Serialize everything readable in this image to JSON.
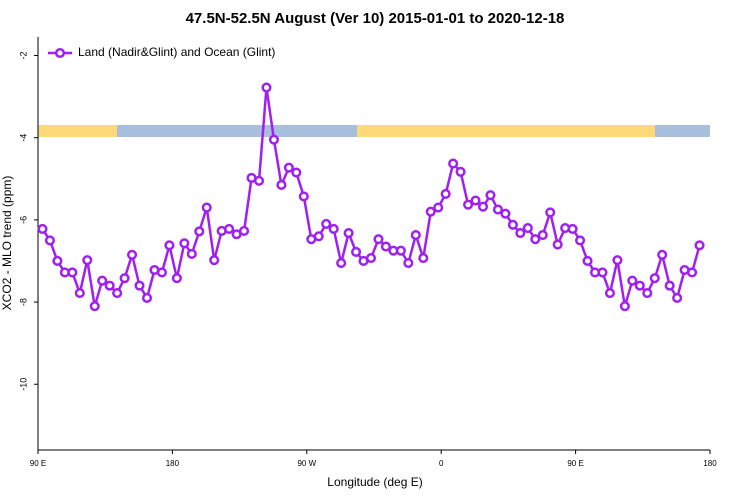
{
  "chart_data": {
    "type": "line",
    "title": "47.5N-52.5N August (Ver 10)   2015-01-01 to 2020-12-18",
    "x_label": "Longitude (deg E)",
    "y_label": "XCO2 - MLO trend (ppm)",
    "legend_position": "top-left",
    "x": [
      93,
      98,
      103,
      108,
      113,
      118,
      123,
      128,
      133,
      138,
      143,
      148,
      153,
      158,
      163,
      168,
      173,
      178,
      183,
      188,
      193,
      198,
      203,
      208,
      213,
      218,
      223,
      228,
      233,
      238,
      243,
      248,
      253,
      258,
      263,
      268,
      273,
      278,
      283,
      288,
      293,
      298,
      303,
      308,
      313,
      318,
      323,
      328,
      333,
      338,
      343,
      348,
      353,
      358,
      363,
      368,
      373,
      378,
      383,
      388,
      393,
      398,
      403,
      408,
      413,
      418,
      423,
      428,
      433,
      438,
      443,
      448,
      453,
      458,
      463,
      468,
      473,
      478,
      483,
      488,
      493,
      498,
      503,
      508,
      513,
      518,
      523,
      528,
      533
    ],
    "series": [
      {
        "name": "Land (Nadir&Glint) and Ocean (Glint)",
        "color": "#a020f0",
        "values": [
          -6.22,
          -6.5,
          -7.0,
          -7.28,
          -7.28,
          -7.78,
          -6.98,
          -8.1,
          -7.48,
          -7.6,
          -7.78,
          -7.42,
          -6.85,
          -7.6,
          -7.9,
          -7.22,
          -7.28,
          -6.62,
          -7.42,
          -6.57,
          -6.83,
          -6.28,
          -5.7,
          -6.98,
          -6.27,
          -6.22,
          -6.35,
          -6.27,
          -4.98,
          -5.05,
          -2.78,
          -4.05,
          -5.15,
          -4.73,
          -4.85,
          -5.43,
          -6.47,
          -6.4,
          -6.1,
          -6.22,
          -7.05,
          -6.32,
          -6.78,
          -7.0,
          -6.93,
          -6.47,
          -6.65,
          -6.75,
          -6.75,
          -7.05,
          -6.37,
          -6.93,
          -5.8,
          -5.7,
          -5.37,
          -4.63,
          -4.83,
          -5.63,
          -5.53,
          -5.68,
          -5.4,
          -5.75,
          -5.85,
          -6.12,
          -6.32,
          -6.2,
          -6.47,
          -6.37,
          -5.82,
          -6.6,
          -6.2,
          -6.22,
          -6.5,
          -7.0,
          -7.28,
          -7.28,
          -7.78,
          -6.98,
          -8.1,
          -7.48,
          -7.6,
          -7.78,
          -7.42,
          -6.85,
          -7.6,
          -7.9,
          -7.22,
          -7.28,
          -6.62
        ]
      }
    ],
    "xlim": [
      90,
      540
    ],
    "xticks": [
      {
        "value": 90,
        "label": "90 E"
      },
      180,
      {
        "value": 270,
        "label": "90 W"
      },
      {
        "value": 360,
        "label": "0"
      },
      {
        "value": 450,
        "label": "90 E"
      },
      {
        "value": 540,
        "label": "180"
      }
    ],
    "ylim": [
      -11.6,
      -1.55
    ],
    "yticks": [
      -2,
      -4,
      -6,
      -8,
      -10
    ]
  }
}
